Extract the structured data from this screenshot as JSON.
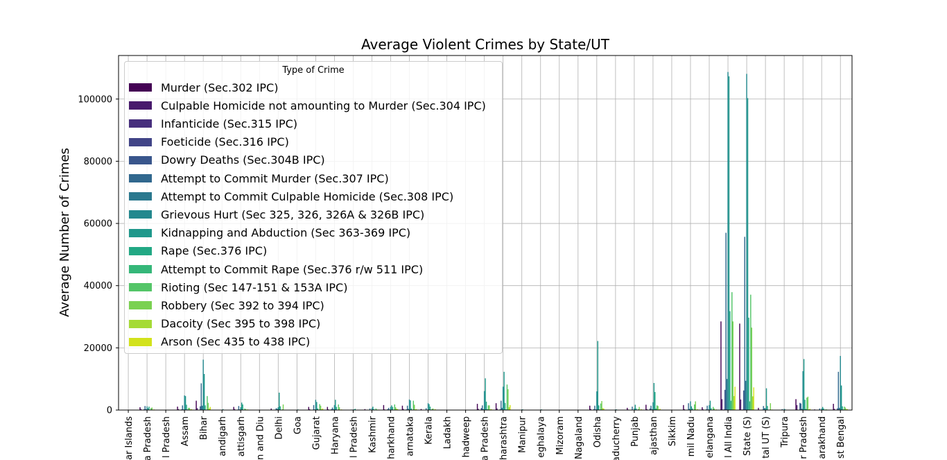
{
  "chart_data": {
    "type": "bar",
    "title": "Average Violent Crimes by State/UT",
    "xlabel": "",
    "ylabel": "Average Number of Crimes",
    "ylim": [
      0,
      114000
    ],
    "yticks": [
      0,
      20000,
      40000,
      60000,
      80000,
      100000
    ],
    "ytick_labels": [
      "0",
      "20000",
      "40000",
      "60000",
      "80000",
      "100000"
    ],
    "grid": true,
    "legend": {
      "title": "Type of Crime",
      "placement": "upper-left"
    },
    "categories": [
      "ar Islands",
      "a Pradesh",
      "l Pradesh",
      "Assam",
      "Bihar",
      "andigarh",
      "attisgarh",
      "n and Diu",
      "Delhi",
      "Goa",
      "Gujarat",
      "Haryana",
      "l Pradesh",
      "Kashmir",
      "harkhand",
      "arnataka",
      "Kerala",
      "Ladakh",
      "hadweep",
      "a Pradesh",
      "harashtra",
      "Manipur",
      "eghalaya",
      "Mizoram",
      "Nagaland",
      "Odisha",
      "aducherry",
      "Punjab",
      "ajasthan",
      "Sikkim",
      "mil Nadu",
      "elangana",
      "l All India",
      "State (S)",
      "tal UT (S)",
      "Tripura",
      "r Pradesh",
      "arakhand",
      "st Bengal"
    ],
    "colors": [
      "#440154",
      "#481a6c",
      "#472f7d",
      "#414487",
      "#39568c",
      "#31688e",
      "#2a788e",
      "#23888e",
      "#1f988b",
      "#22a884",
      "#35b779",
      "#54c568",
      "#7ad151",
      "#a5db36",
      "#d2e21b"
    ],
    "series": [
      {
        "name": "Murder (Sec.302 IPC)",
        "values": [
          10,
          900,
          60,
          1100,
          3000,
          20,
          1000,
          20,
          500,
          40,
          1000,
          1000,
          100,
          300,
          1600,
          1400,
          350,
          8,
          1,
          2000,
          2200,
          50,
          100,
          30,
          30,
          1400,
          30,
          700,
          1700,
          10,
          1600,
          900,
          28500,
          27800,
          700,
          80,
          3500,
          200,
          2000
        ]
      },
      {
        "name": "Culpable Homicide not amounting to Murder (Sec.304 IPC)",
        "values": [
          3,
          300,
          20,
          300,
          600,
          5,
          300,
          5,
          100,
          10,
          250,
          200,
          20,
          50,
          200,
          350,
          70,
          2,
          0,
          400,
          500,
          10,
          20,
          5,
          5,
          300,
          10,
          150,
          250,
          3,
          250,
          200,
          3500,
          3400,
          80,
          10,
          1600,
          50,
          400
        ]
      },
      {
        "name": "Infanticide (Sec.315 IPC)",
        "values": [
          0,
          5,
          0,
          5,
          10,
          0,
          8,
          0,
          5,
          0,
          20,
          5,
          0,
          0,
          5,
          10,
          2,
          0,
          0,
          40,
          20,
          0,
          0,
          0,
          0,
          5,
          0,
          5,
          30,
          0,
          10,
          5,
          150,
          140,
          5,
          0,
          30,
          2,
          10
        ]
      },
      {
        "name": "Foeticide (Sec.316 IPC)",
        "values": [
          0,
          5,
          0,
          5,
          10,
          0,
          5,
          0,
          10,
          0,
          30,
          20,
          0,
          0,
          5,
          10,
          2,
          0,
          0,
          30,
          30,
          0,
          0,
          0,
          0,
          5,
          0,
          20,
          60,
          0,
          10,
          5,
          200,
          190,
          8,
          0,
          20,
          3,
          10
        ]
      },
      {
        "name": "Dowry Deaths (Sec.304B IPC)",
        "values": [
          1,
          250,
          2,
          200,
          1200,
          3,
          150,
          1,
          150,
          1,
          50,
          300,
          5,
          10,
          300,
          200,
          20,
          0,
          0,
          650,
          250,
          1,
          1,
          0,
          0,
          300,
          5,
          100,
          500,
          1,
          100,
          200,
          6500,
          6300,
          150,
          30,
          2300,
          70,
          550
        ]
      },
      {
        "name": "Attempt to Commit Murder (Sec.307 IPC)",
        "values": [
          20,
          1300,
          80,
          1500,
          8600,
          20,
          1300,
          20,
          600,
          50,
          1600,
          800,
          150,
          500,
          700,
          1400,
          600,
          20,
          2,
          1500,
          3000,
          100,
          60,
          30,
          40,
          1400,
          100,
          1100,
          1400,
          20,
          2200,
          1400,
          57000,
          55700,
          1300,
          300,
          2100,
          500,
          12300
        ]
      },
      {
        "name": "Attempt to Commit Culpable Homicide (Sec.308 IPC)",
        "values": [
          10,
          300,
          20,
          200,
          1400,
          10,
          200,
          10,
          400,
          10,
          200,
          300,
          30,
          50,
          200,
          400,
          50,
          5,
          0,
          300,
          700,
          20,
          10,
          5,
          5,
          200,
          20,
          100,
          300,
          10,
          400,
          200,
          10000,
          9400,
          600,
          50,
          400,
          100,
          700
        ]
      },
      {
        "name": "Grievous Hurt (Sec 325, 326, 326A & 326B IPC)",
        "values": [
          30,
          1200,
          80,
          4700,
          16200,
          60,
          900,
          20,
          900,
          100,
          3300,
          1600,
          200,
          600,
          1000,
          3400,
          2200,
          20,
          5,
          6100,
          7500,
          200,
          150,
          60,
          100,
          6000,
          200,
          500,
          2500,
          40,
          2800,
          1600,
          108700,
          108100,
          600,
          400,
          12500,
          500,
          17400
        ]
      },
      {
        "name": "Kidnapping and Abduction (Sec 363-369 IPC)",
        "values": [
          40,
          600,
          100,
          4500,
          11600,
          300,
          2400,
          40,
          5600,
          200,
          2600,
          3300,
          200,
          1100,
          1500,
          3100,
          1900,
          30,
          5,
          10200,
          12300,
          200,
          200,
          50,
          100,
          22200,
          200,
          1700,
          8700,
          50,
          1200,
          3000,
          107300,
          100300,
          7000,
          200,
          16400,
          1000,
          7900
        ]
      },
      {
        "name": "Rape (Sec.376 IPC)",
        "values": [
          20,
          1100,
          50,
          1700,
          1500,
          100,
          1800,
          10,
          1200,
          50,
          500,
          1000,
          400,
          300,
          1000,
          500,
          1100,
          20,
          5,
          2700,
          2300,
          50,
          80,
          20,
          10,
          1500,
          10,
          500,
          5800,
          20,
          500,
          600,
          31800,
          29700,
          1300,
          60,
          3300,
          500,
          1200
        ]
      },
      {
        "name": "Attempt to Commit Rape (Sec.376 r/w 511 IPC)",
        "values": [
          2,
          100,
          5,
          200,
          100,
          5,
          100,
          1,
          50,
          5,
          100,
          50,
          20,
          10,
          100,
          100,
          50,
          1,
          0,
          300,
          200,
          5,
          5,
          2,
          1,
          150,
          1,
          50,
          500,
          1,
          50,
          50,
          3000,
          2800,
          80,
          5,
          400,
          50,
          200
        ]
      },
      {
        "name": "Rioting (Sec 147-151 & 153A IPC)",
        "values": [
          10,
          600,
          20,
          700,
          4500,
          5,
          500,
          5,
          200,
          20,
          1900,
          1800,
          100,
          500,
          1800,
          3000,
          400,
          10,
          1,
          1500,
          8200,
          50,
          20,
          5,
          5,
          2100,
          50,
          300,
          1500,
          5,
          1800,
          1000,
          37900,
          37100,
          100,
          50,
          4000,
          200,
          1100
        ]
      },
      {
        "name": "Robbery (Sec 392 to 394 IPC)",
        "values": [
          10,
          800,
          30,
          700,
          2300,
          100,
          300,
          5,
          1800,
          50,
          1400,
          900,
          80,
          200,
          900,
          1700,
          500,
          10,
          0,
          1500,
          6700,
          50,
          50,
          10,
          10,
          2900,
          40,
          1000,
          1300,
          5,
          2800,
          500,
          28500,
          26500,
          2200,
          30,
          4300,
          200,
          800
        ]
      },
      {
        "name": "Dacoity (Sec 395 to 398 IPC)",
        "values": [
          1,
          100,
          10,
          200,
          500,
          2,
          100,
          1,
          30,
          2,
          300,
          100,
          10,
          20,
          400,
          200,
          100,
          1,
          0,
          200,
          900,
          10,
          10,
          2,
          5,
          600,
          5,
          50,
          200,
          0,
          100,
          100,
          4500,
          4400,
          80,
          5,
          200,
          30,
          300
        ]
      },
      {
        "name": "Arson (Sec 435 to 438 IPC)",
        "values": [
          5,
          200,
          20,
          300,
          1000,
          5,
          200,
          5,
          100,
          10,
          500,
          200,
          50,
          150,
          300,
          300,
          300,
          5,
          1,
          300,
          1600,
          50,
          20,
          5,
          10,
          500,
          20,
          300,
          400,
          5,
          300,
          200,
          7500,
          7300,
          150,
          10,
          400,
          100,
          300
        ]
      }
    ]
  }
}
